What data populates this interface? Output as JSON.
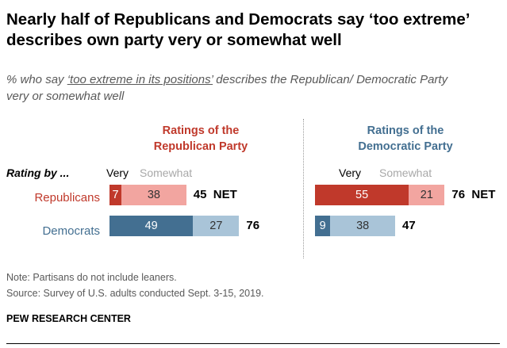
{
  "title": "Nearly half of Republicans and Democrats say ‘too extreme’ describes own party very or somewhat well",
  "subtitle_prefix": "% who say ",
  "subtitle_quote": "‘too extreme in its positions’",
  "subtitle_suffix": " describes the Republican/ Democratic Party very or somewhat well",
  "rating_by": "Rating by ...",
  "colors": {
    "rep_very": "#c0392b",
    "rep_somewhat": "#f2a5a0",
    "dem_very": "#436f91",
    "dem_somewhat": "#a9c4d8",
    "rep_title": "#c0392b",
    "dem_title": "#436f91",
    "label_rep": "#c0392b",
    "label_dem": "#436f91"
  },
  "chart_data": {
    "type": "bar",
    "stacked": true,
    "orientation": "horizontal",
    "title": "Nearly half of Republicans and Democrats say ‘too extreme’ describes own party very or somewhat well",
    "categories": [
      "Republicans",
      "Democrats"
    ],
    "legend": [
      "Very",
      "Somewhat"
    ],
    "panels": [
      {
        "title_line1": "Ratings of the",
        "title_line2": "Republican Party",
        "very_label": "Very",
        "somewhat_label": "Somewhat",
        "series": [
          {
            "name": "Very",
            "values": [
              7,
              49
            ]
          },
          {
            "name": "Somewhat",
            "values": [
              38,
              27
            ]
          }
        ],
        "net": [
          "45",
          "76"
        ],
        "net_suffix": "NET"
      },
      {
        "title_line1": "Ratings of the",
        "title_line2": "Democratic Party",
        "very_label": "Very",
        "somewhat_label": "Somewhat",
        "series": [
          {
            "name": "Very",
            "values": [
              55,
              9
            ]
          },
          {
            "name": "Somewhat",
            "values": [
              21,
              38
            ]
          }
        ],
        "net": [
          "76",
          "47"
        ],
        "net_suffix": "NET"
      }
    ]
  },
  "note": "Note: Partisans do not include leaners.",
  "source": "Source: Survey of U.S. adults conducted Sept. 3-15, 2019.",
  "footer": "PEW RESEARCH CENTER"
}
